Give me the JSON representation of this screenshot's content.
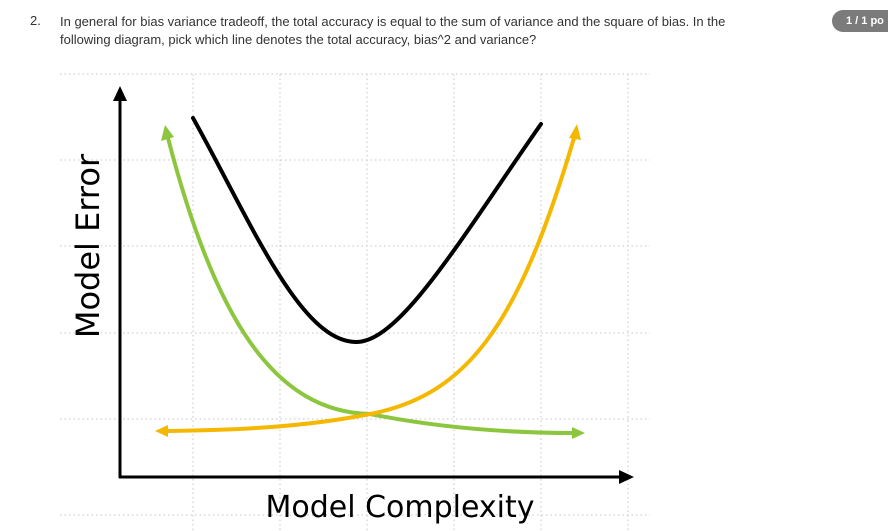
{
  "question": {
    "number": "2.",
    "text": "In general for bias variance tradeoff, the total accuracy is equal to the sum of variance and the square of bias. In the following diagram, pick which line denotes the total accuracy, bias^2 and variance?",
    "points_badge": "1 / 1 po"
  },
  "diagram": {
    "y_axis_label": "Model Error",
    "x_axis_label": "Model Complexity",
    "curves": [
      {
        "name": "black-curve",
        "color": "#000000"
      },
      {
        "name": "green-curve",
        "color": "#8cc63f"
      },
      {
        "name": "yellow-curve",
        "color": "#f5b800"
      }
    ]
  }
}
